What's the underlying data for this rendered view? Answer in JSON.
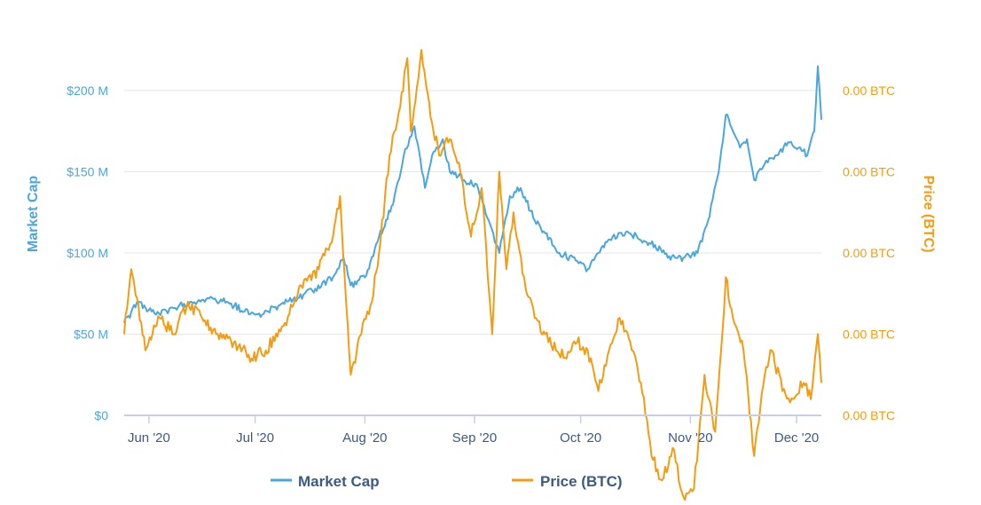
{
  "chart_data": {
    "type": "line",
    "title": "",
    "x_ticks": [
      "Jun '20",
      "Jul '20",
      "Aug '20",
      "Sep '20",
      "Oct '20",
      "Nov '20",
      "Dec '20"
    ],
    "y_left": {
      "label": "Market Cap",
      "ticks": [
        "$0",
        "$50 M",
        "$100 M",
        "$150 M",
        "$200 M"
      ],
      "ylim": [
        0,
        200000000
      ],
      "color": "#4aa7dc"
    },
    "y_right": {
      "label": "Price (BTC)",
      "ticks": [
        "0.00 BTC",
        "0.00 BTC",
        "0.00 BTC",
        "0.00 BTC",
        "0.00 BTC"
      ],
      "color": "#f39c12"
    },
    "grid": true,
    "legend": "bottom",
    "series": [
      {
        "name": "Market Cap",
        "axis": "left",
        "color": "#4aa7dc",
        "x": [
          "2020-05-25",
          "2020-05-29",
          "2020-06-03",
          "2020-06-08",
          "2020-06-13",
          "2020-06-18",
          "2020-06-23",
          "2020-06-28",
          "2020-07-03",
          "2020-07-08",
          "2020-07-13",
          "2020-07-18",
          "2020-07-23",
          "2020-07-26",
          "2020-07-28",
          "2020-08-01",
          "2020-08-05",
          "2020-08-09",
          "2020-08-12",
          "2020-08-15",
          "2020-08-18",
          "2020-08-20",
          "2020-08-23",
          "2020-08-25",
          "2020-08-29",
          "2020-09-02",
          "2020-09-05",
          "2020-09-08",
          "2020-09-11",
          "2020-09-14",
          "2020-09-18",
          "2020-09-21",
          "2020-09-25",
          "2020-09-30",
          "2020-10-03",
          "2020-10-06",
          "2020-10-10",
          "2020-10-15",
          "2020-10-18",
          "2020-10-22",
          "2020-10-26",
          "2020-10-30",
          "2020-11-03",
          "2020-11-06",
          "2020-11-09",
          "2020-11-11",
          "2020-11-13",
          "2020-11-15",
          "2020-11-17",
          "2020-11-19",
          "2020-11-22",
          "2020-11-25",
          "2020-11-29",
          "2020-12-02",
          "2020-12-04",
          "2020-12-06",
          "2020-12-07",
          "2020-12-08"
        ],
        "values": [
          57000000,
          70000000,
          62000000,
          66000000,
          70000000,
          72000000,
          70000000,
          64000000,
          62000000,
          68000000,
          72000000,
          78000000,
          85000000,
          97000000,
          80000000,
          85000000,
          110000000,
          130000000,
          160000000,
          178000000,
          140000000,
          160000000,
          170000000,
          150000000,
          145000000,
          140000000,
          120000000,
          100000000,
          135000000,
          140000000,
          120000000,
          112000000,
          100000000,
          95000000,
          90000000,
          100000000,
          110000000,
          112000000,
          108000000,
          105000000,
          98000000,
          97000000,
          100000000,
          120000000,
          150000000,
          185000000,
          175000000,
          165000000,
          170000000,
          145000000,
          155000000,
          160000000,
          168000000,
          165000000,
          160000000,
          175000000,
          215000000,
          182000000
        ]
      },
      {
        "name": "Price (BTC)",
        "axis": "right",
        "color": "#f39c12",
        "x": [
          "2020-05-25",
          "2020-05-27",
          "2020-05-31",
          "2020-06-04",
          "2020-06-08",
          "2020-06-12",
          "2020-06-16",
          "2020-06-20",
          "2020-06-25",
          "2020-06-30",
          "2020-07-04",
          "2020-07-09",
          "2020-07-14",
          "2020-07-19",
          "2020-07-23",
          "2020-07-25",
          "2020-07-28",
          "2020-07-31",
          "2020-08-03",
          "2020-08-05",
          "2020-08-08",
          "2020-08-11",
          "2020-08-13",
          "2020-08-14",
          "2020-08-17",
          "2020-08-20",
          "2020-08-22",
          "2020-08-25",
          "2020-08-28",
          "2020-08-31",
          "2020-09-03",
          "2020-09-06",
          "2020-09-08",
          "2020-09-10",
          "2020-09-12",
          "2020-09-15",
          "2020-09-18",
          "2020-09-21",
          "2020-09-24",
          "2020-09-27",
          "2020-09-30",
          "2020-10-03",
          "2020-10-06",
          "2020-10-09",
          "2020-10-12",
          "2020-10-15",
          "2020-10-18",
          "2020-10-21",
          "2020-10-24",
          "2020-10-27",
          "2020-10-30",
          "2020-11-02",
          "2020-11-05",
          "2020-11-08",
          "2020-11-11",
          "2020-11-13",
          "2020-11-16",
          "2020-11-19",
          "2020-11-22",
          "2020-11-24",
          "2020-11-27",
          "2020-11-30",
          "2020-12-03",
          "2020-12-05",
          "2020-12-07",
          "2020-12-08"
        ],
        "values": [
          0.1,
          0.18,
          0.08,
          0.12,
          0.1,
          0.14,
          0.12,
          0.1,
          0.09,
          0.07,
          0.08,
          0.11,
          0.16,
          0.18,
          0.22,
          0.27,
          0.05,
          0.1,
          0.14,
          0.2,
          0.32,
          0.38,
          0.44,
          0.35,
          0.45,
          0.36,
          0.32,
          0.34,
          0.3,
          0.22,
          0.28,
          0.1,
          0.3,
          0.18,
          0.25,
          0.17,
          0.12,
          0.1,
          0.08,
          0.07,
          0.09,
          0.08,
          0.03,
          0.08,
          0.12,
          0.09,
          0.04,
          -0.05,
          -0.08,
          -0.04,
          -0.1,
          -0.09,
          0.05,
          -0.02,
          0.17,
          0.12,
          0.08,
          -0.05,
          0.05,
          0.08,
          0.03,
          0.02,
          0.04,
          0.02,
          0.1,
          0.04
        ]
      }
    ]
  },
  "legend": {
    "market_cap": "Market Cap",
    "price": "Price (BTC)"
  }
}
